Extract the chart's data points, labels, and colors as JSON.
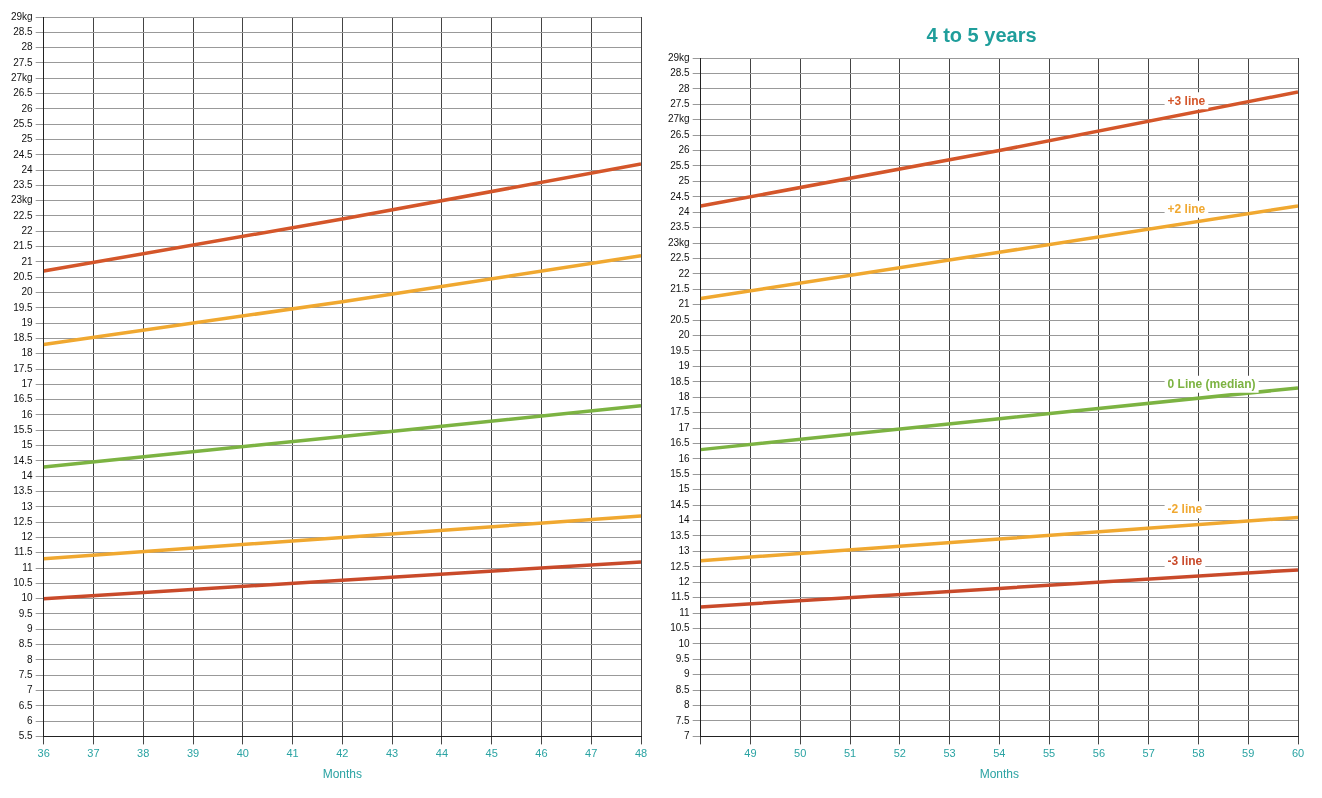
{
  "chart_data": [
    {
      "type": "line",
      "xlabel": "Months",
      "xlim": [
        36,
        48
      ],
      "xticks": [
        36,
        37,
        38,
        39,
        40,
        41,
        42,
        43,
        44,
        45,
        46,
        47,
        48
      ],
      "ylim": [
        5.5,
        29
      ],
      "yticks": [
        5.5,
        6,
        6.5,
        7,
        7.5,
        8,
        8.5,
        9,
        9.5,
        10,
        10.5,
        11,
        11.5,
        12,
        12.5,
        13,
        13.5,
        14,
        14.5,
        15,
        15.5,
        16,
        16.5,
        17,
        17.5,
        18,
        18.5,
        19,
        19.5,
        20,
        20.5,
        21,
        21.5,
        22,
        22.5,
        {
          "value": 23,
          "label": "23kg"
        },
        23.5,
        24,
        24.5,
        25,
        25.5,
        26,
        26.5,
        {
          "value": 27,
          "label": "27kg"
        },
        27.5,
        28,
        28.5,
        {
          "value": 29,
          "label": "29kg"
        }
      ],
      "grid": true,
      "legend": false,
      "marker": "none",
      "line_style": "solid",
      "x": [
        36,
        42,
        48
      ],
      "series": [
        {
          "color": "#d4562a",
          "values": [
            20.7,
            22.4,
            24.2
          ]
        },
        {
          "color": "#f0a830",
          "values": [
            18.3,
            19.7,
            21.2
          ]
        },
        {
          "color": "#7cb342",
          "values": [
            14.3,
            15.3,
            16.3
          ]
        },
        {
          "color": "#f0a830",
          "values": [
            11.3,
            12.0,
            12.7
          ]
        },
        {
          "color": "#c94a2a",
          "values": [
            10.0,
            10.6,
            11.2
          ]
        }
      ]
    },
    {
      "type": "line",
      "title": "4 to 5 years",
      "xlabel": "Months",
      "xlim": [
        48,
        60
      ],
      "xticks": [
        {
          "value": 48,
          "label": null
        },
        49,
        50,
        51,
        52,
        53,
        54,
        55,
        56,
        57,
        58,
        59,
        60
      ],
      "ylim": [
        7,
        29
      ],
      "yticks": [
        7,
        7.5,
        8,
        8.5,
        9,
        9.5,
        10,
        10.5,
        11,
        11.5,
        12,
        12.5,
        13,
        13.5,
        14,
        14.5,
        15,
        15.5,
        16,
        16.5,
        17,
        17.5,
        18,
        18.5,
        19,
        19.5,
        20,
        20.5,
        21,
        21.5,
        22,
        22.5,
        {
          "value": 23,
          "label": "23kg"
        },
        23.5,
        24,
        24.5,
        25,
        25.5,
        26,
        26.5,
        {
          "value": 27,
          "label": "27kg"
        },
        27.5,
        28,
        28.5,
        {
          "value": 29,
          "label": "29kg"
        }
      ],
      "grid": true,
      "legend": false,
      "marker": "none",
      "line_style": "solid",
      "x": [
        48,
        54,
        60
      ],
      "series": [
        {
          "name": "+3 line",
          "color": "#d4562a",
          "values": [
            24.2,
            26.0,
            27.9
          ]
        },
        {
          "name": "+2 line",
          "color": "#f0a830",
          "values": [
            21.2,
            22.7,
            24.2
          ]
        },
        {
          "name": "0 Line (median)",
          "color": "#7cb342",
          "values": [
            16.3,
            17.3,
            18.3
          ]
        },
        {
          "name": "-2 line",
          "color": "#f0a830",
          "values": [
            12.7,
            13.4,
            14.1
          ]
        },
        {
          "name": "-3 line",
          "color": "#c94a2a",
          "values": [
            11.2,
            11.8,
            12.4
          ]
        }
      ]
    }
  ]
}
